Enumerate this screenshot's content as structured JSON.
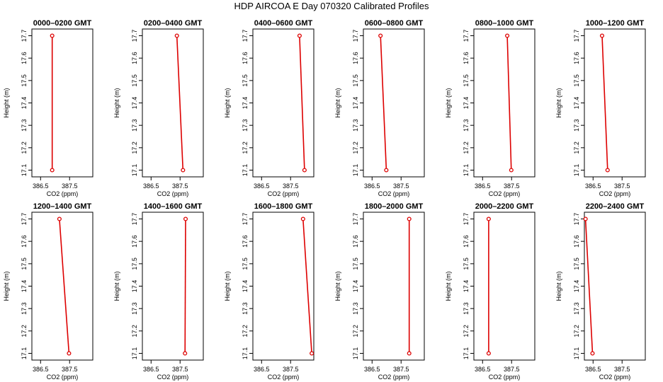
{
  "title": "HDP  AIRCOA E  Day 070320  Calibrated Profiles",
  "colors": {
    "profile": "#dd0000",
    "axis": "#000000"
  },
  "chart_data": [
    {
      "type": "line",
      "title": "0000–0200 GMT",
      "xlabel": "CO2 (ppm)",
      "ylabel": "Height (m)",
      "xlim": [
        386.2,
        388.3
      ],
      "ylim": [
        17.07,
        17.73
      ],
      "xticks": [
        386.5,
        387.5
      ],
      "xtick_labels": [
        "386.5",
        "387.5"
      ],
      "yticks": [
        17.1,
        17.2,
        17.3,
        17.4,
        17.5,
        17.6,
        17.7
      ],
      "ytick_labels": [
        "17.1",
        "17.2",
        "17.3",
        "17.4",
        "17.5",
        "17.6",
        "17.7"
      ],
      "series": [
        {
          "x": [
            386.9,
            386.9
          ],
          "y": [
            17.1,
            17.7
          ]
        }
      ]
    },
    {
      "type": "line",
      "title": "0200–0400 GMT",
      "xlabel": "CO2 (ppm)",
      "ylabel": "Height (m)",
      "xlim": [
        386.2,
        388.3
      ],
      "ylim": [
        17.07,
        17.73
      ],
      "xticks": [
        386.5,
        387.5
      ],
      "xtick_labels": [
        "386.5",
        "387.5"
      ],
      "yticks": [
        17.1,
        17.2,
        17.3,
        17.4,
        17.5,
        17.6,
        17.7
      ],
      "ytick_labels": [
        "17.1",
        "17.2",
        "17.3",
        "17.4",
        "17.5",
        "17.6",
        "17.7"
      ],
      "series": [
        {
          "x": [
            387.6,
            387.39
          ],
          "y": [
            17.1,
            17.7
          ]
        }
      ]
    },
    {
      "type": "line",
      "title": "0400–0600 GMT",
      "xlabel": "CO2 (ppm)",
      "ylabel": "Height (m)",
      "xlim": [
        386.2,
        388.3
      ],
      "ylim": [
        17.07,
        17.73
      ],
      "xticks": [
        386.5,
        387.5
      ],
      "xtick_labels": [
        "386.5",
        "387.5"
      ],
      "yticks": [
        17.1,
        17.2,
        17.3,
        17.4,
        17.5,
        17.6,
        17.7
      ],
      "ytick_labels": [
        "17.1",
        "17.2",
        "17.3",
        "17.4",
        "17.5",
        "17.6",
        "17.7"
      ],
      "series": [
        {
          "x": [
            387.98,
            387.81
          ],
          "y": [
            17.1,
            17.7
          ]
        }
      ]
    },
    {
      "type": "line",
      "title": "0600–0800 GMT",
      "xlabel": "CO2 (ppm)",
      "ylabel": "Height (m)",
      "xlim": [
        386.2,
        388.3
      ],
      "ylim": [
        17.07,
        17.73
      ],
      "xticks": [
        386.5,
        387.5
      ],
      "xtick_labels": [
        "386.5",
        "387.5"
      ],
      "yticks": [
        17.1,
        17.2,
        17.3,
        17.4,
        17.5,
        17.6,
        17.7
      ],
      "ytick_labels": [
        "17.1",
        "17.2",
        "17.3",
        "17.4",
        "17.5",
        "17.6",
        "17.7"
      ],
      "series": [
        {
          "x": [
            386.99,
            386.79
          ],
          "y": [
            17.1,
            17.7
          ]
        }
      ]
    },
    {
      "type": "line",
      "title": "0800–1000 GMT",
      "xlabel": "CO2 (ppm)",
      "ylabel": "Height (m)",
      "xlim": [
        386.2,
        388.3
      ],
      "ylim": [
        17.07,
        17.73
      ],
      "xticks": [
        386.5,
        387.5
      ],
      "xtick_labels": [
        "386.5",
        "387.5"
      ],
      "yticks": [
        17.1,
        17.2,
        17.3,
        17.4,
        17.5,
        17.6,
        17.7
      ],
      "ytick_labels": [
        "17.1",
        "17.2",
        "17.3",
        "17.4",
        "17.5",
        "17.6",
        "17.7"
      ],
      "series": [
        {
          "x": [
            387.49,
            387.35
          ],
          "y": [
            17.1,
            17.7
          ]
        }
      ]
    },
    {
      "type": "line",
      "title": "1000–1200 GMT",
      "xlabel": "CO2 (ppm)",
      "ylabel": "Height (m)",
      "xlim": [
        386.2,
        388.3
      ],
      "ylim": [
        17.07,
        17.73
      ],
      "xticks": [
        386.5,
        387.5
      ],
      "xtick_labels": [
        "386.5",
        "387.5"
      ],
      "yticks": [
        17.1,
        17.2,
        17.3,
        17.4,
        17.5,
        17.6,
        17.7
      ],
      "ytick_labels": [
        "17.1",
        "17.2",
        "17.3",
        "17.4",
        "17.5",
        "17.6",
        "17.7"
      ],
      "series": [
        {
          "x": [
            387.0,
            386.81
          ],
          "y": [
            17.1,
            17.7
          ]
        }
      ]
    },
    {
      "type": "line",
      "title": "1200–1400 GMT",
      "xlabel": "CO2 (ppm)",
      "ylabel": "Height (m)",
      "xlim": [
        386.2,
        388.3
      ],
      "ylim": [
        17.07,
        17.73
      ],
      "xticks": [
        386.5,
        387.5
      ],
      "xtick_labels": [
        "386.5",
        "387.5"
      ],
      "yticks": [
        17.1,
        17.2,
        17.3,
        17.4,
        17.5,
        17.6,
        17.7
      ],
      "ytick_labels": [
        "17.1",
        "17.2",
        "17.3",
        "17.4",
        "17.5",
        "17.6",
        "17.7"
      ],
      "series": [
        {
          "x": [
            387.48,
            387.15
          ],
          "y": [
            17.1,
            17.7
          ]
        }
      ]
    },
    {
      "type": "line",
      "title": "1400–1600 GMT",
      "xlabel": "CO2 (ppm)",
      "ylabel": "Height (m)",
      "xlim": [
        386.2,
        388.3
      ],
      "ylim": [
        17.07,
        17.73
      ],
      "xticks": [
        386.5,
        387.5
      ],
      "xtick_labels": [
        "386.5",
        "387.5"
      ],
      "yticks": [
        17.1,
        17.2,
        17.3,
        17.4,
        17.5,
        17.6,
        17.7
      ],
      "ytick_labels": [
        "17.1",
        "17.2",
        "17.3",
        "17.4",
        "17.5",
        "17.6",
        "17.7"
      ],
      "series": [
        {
          "x": [
            387.67,
            387.69
          ],
          "y": [
            17.1,
            17.7
          ]
        }
      ]
    },
    {
      "type": "line",
      "title": "1600–1800 GMT",
      "xlabel": "CO2 (ppm)",
      "ylabel": "Height (m)",
      "xlim": [
        386.2,
        388.3
      ],
      "ylim": [
        17.07,
        17.73
      ],
      "xticks": [
        386.5,
        387.5
      ],
      "xtick_labels": [
        "386.5",
        "387.5"
      ],
      "yticks": [
        17.1,
        17.2,
        17.3,
        17.4,
        17.5,
        17.6,
        17.7
      ],
      "ytick_labels": [
        "17.1",
        "17.2",
        "17.3",
        "17.4",
        "17.5",
        "17.6",
        "17.7"
      ],
      "series": [
        {
          "x": [
            388.23,
            387.93
          ],
          "y": [
            17.1,
            17.7
          ]
        }
      ]
    },
    {
      "type": "line",
      "title": "1800–2000 GMT",
      "xlabel": "CO2 (ppm)",
      "ylabel": "Height (m)",
      "xlim": [
        386.2,
        388.3
      ],
      "ylim": [
        17.07,
        17.73
      ],
      "xticks": [
        386.5,
        387.5
      ],
      "xtick_labels": [
        "386.5",
        "387.5"
      ],
      "yticks": [
        17.1,
        17.2,
        17.3,
        17.4,
        17.5,
        17.6,
        17.7
      ],
      "ytick_labels": [
        "17.1",
        "17.2",
        "17.3",
        "17.4",
        "17.5",
        "17.6",
        "17.7"
      ],
      "series": [
        {
          "x": [
            387.78,
            387.78
          ],
          "y": [
            17.1,
            17.7
          ]
        }
      ]
    },
    {
      "type": "line",
      "title": "2000–2200 GMT",
      "xlabel": "CO2 (ppm)",
      "ylabel": "Height (m)",
      "xlim": [
        386.2,
        388.3
      ],
      "ylim": [
        17.07,
        17.73
      ],
      "xticks": [
        386.5,
        387.5
      ],
      "xtick_labels": [
        "386.5",
        "387.5"
      ],
      "yticks": [
        17.1,
        17.2,
        17.3,
        17.4,
        17.5,
        17.6,
        17.7
      ],
      "ytick_labels": [
        "17.1",
        "17.2",
        "17.3",
        "17.4",
        "17.5",
        "17.6",
        "17.7"
      ],
      "series": [
        {
          "x": [
            386.71,
            386.71
          ],
          "y": [
            17.1,
            17.7
          ]
        }
      ]
    },
    {
      "type": "line",
      "title": "2200–2400 GMT",
      "xlabel": "CO2 (ppm)",
      "ylabel": "Height (m)",
      "xlim": [
        386.2,
        388.3
      ],
      "ylim": [
        17.07,
        17.73
      ],
      "xticks": [
        386.5,
        387.5
      ],
      "xtick_labels": [
        "386.5",
        "387.5"
      ],
      "yticks": [
        17.1,
        17.2,
        17.3,
        17.4,
        17.5,
        17.6,
        17.7
      ],
      "ytick_labels": [
        "17.1",
        "17.2",
        "17.3",
        "17.4",
        "17.5",
        "17.6",
        "17.7"
      ],
      "series": [
        {
          "x": [
            386.48,
            386.24
          ],
          "y": [
            17.1,
            17.7
          ]
        }
      ]
    }
  ]
}
